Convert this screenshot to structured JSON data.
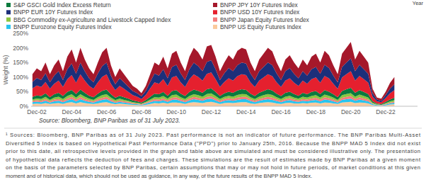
{
  "chart_data": {
    "type": "area",
    "stacked": true,
    "grid": false,
    "legend": "top",
    "y_label": "Weight (%)",
    "annotations": [
      "Year"
    ],
    "categories": [
      null,
      "Dec-02",
      null,
      null,
      null,
      null,
      null,
      null,
      null,
      "Dec-04",
      null,
      null,
      null,
      null,
      null,
      null,
      null,
      "Dec-06",
      null,
      null,
      null,
      null,
      null,
      null,
      null,
      "Dec-08",
      null,
      null,
      null,
      null,
      null,
      null,
      null,
      "Dec-10",
      null,
      null,
      null,
      null,
      null,
      null,
      null,
      "Dec-12",
      null,
      null,
      null,
      null,
      null,
      null,
      null,
      "Dec-14",
      null,
      null,
      null,
      null,
      null,
      null,
      null,
      "Dec-16",
      null,
      null,
      null,
      null,
      null,
      null,
      null,
      "Dec-18",
      null,
      null,
      null,
      null,
      null,
      null,
      null,
      "Dec-20",
      null,
      null,
      null,
      null,
      null,
      null,
      null,
      "Dec-22",
      null,
      null
    ],
    "ylim": [
      0,
      250
    ],
    "yticks": [
      {
        "value": 0,
        "label": "0%"
      },
      {
        "value": 50,
        "label": "50%"
      },
      {
        "value": 100,
        "label": "100%"
      },
      {
        "value": 150,
        "label": "150%"
      },
      {
        "value": 200,
        "label": "200%"
      },
      {
        "value": 250,
        "label": "250%"
      }
    ],
    "series": [
      {
        "name": "S&P GSCI Gold Index Excess Return",
        "color": "#0b7a3e",
        "values": [
          9,
          10,
          10,
          12,
          9,
          11,
          13,
          10,
          14,
          15,
          12,
          16,
          13,
          10,
          9,
          12,
          15,
          16,
          11,
          8,
          10,
          9,
          7,
          6,
          5,
          4,
          6,
          9,
          12,
          11,
          14,
          10,
          14,
          15,
          12,
          10,
          14,
          16,
          15,
          13,
          16,
          17,
          14,
          10,
          12,
          14,
          13,
          15,
          16,
          15,
          12,
          10,
          13,
          14,
          16,
          15,
          12,
          10,
          13,
          14,
          12,
          10,
          13,
          11,
          14,
          14,
          12,
          15,
          14,
          11,
          9,
          14,
          16,
          18,
          13,
          15,
          14,
          12,
          5,
          2,
          2,
          4,
          6,
          8
        ]
      },
      {
        "name": "BNPP JPY 10Y Futures Index",
        "color": "#a5182b",
        "values": [
          27,
          33,
          30,
          37,
          28,
          35,
          40,
          30,
          43,
          49,
          39,
          51,
          40,
          34,
          28,
          38,
          47,
          51,
          35,
          25,
          34,
          28,
          23,
          18,
          15,
          11,
          17,
          27,
          38,
          35,
          43,
          34,
          45,
          48,
          38,
          30,
          43,
          51,
          47,
          40,
          53,
          52,
          43,
          30,
          37,
          44,
          40,
          49,
          50,
          49,
          38,
          30,
          40,
          45,
          50,
          47,
          38,
          30,
          40,
          44,
          39,
          34,
          40,
          35,
          43,
          45,
          39,
          48,
          44,
          35,
          28,
          45,
          50,
          56,
          40,
          48,
          43,
          38,
          15,
          7,
          7,
          12,
          20,
          25
        ]
      },
      {
        "name": "BNPP EUR 10Y Futures Index",
        "color": "#1c2f7a",
        "values": [
          22,
          26,
          24,
          30,
          22,
          28,
          32,
          24,
          34,
          39,
          30,
          40,
          32,
          26,
          22,
          30,
          37,
          40,
          28,
          20,
          26,
          22,
          18,
          14,
          12,
          9,
          14,
          22,
          30,
          28,
          34,
          26,
          36,
          38,
          30,
          24,
          34,
          40,
          37,
          32,
          41,
          42,
          34,
          24,
          30,
          35,
          32,
          38,
          40,
          39,
          30,
          24,
          32,
          36,
          40,
          38,
          30,
          24,
          32,
          35,
          30,
          26,
          32,
          28,
          34,
          36,
          30,
          38,
          35,
          28,
          22,
          36,
          40,
          44,
          32,
          38,
          34,
          30,
          12,
          6,
          5,
          10,
          16,
          20
        ]
      },
      {
        "name": "BNPP USD 10Y Futures Index",
        "color": "#e5202e",
        "values": [
          29,
          34,
          31,
          39,
          29,
          36,
          42,
          31,
          44,
          51,
          39,
          52,
          42,
          34,
          29,
          39,
          48,
          52,
          36,
          26,
          34,
          29,
          23,
          18,
          16,
          12,
          18,
          29,
          39,
          36,
          44,
          34,
          47,
          49,
          39,
          31,
          44,
          52,
          48,
          42,
          53,
          55,
          44,
          31,
          39,
          46,
          42,
          49,
          52,
          51,
          39,
          31,
          42,
          47,
          52,
          49,
          39,
          31,
          42,
          46,
          39,
          34,
          42,
          36,
          44,
          47,
          39,
          49,
          46,
          36,
          29,
          47,
          52,
          57,
          42,
          49,
          44,
          39,
          16,
          8,
          7,
          13,
          21,
          26
        ]
      },
      {
        "name": "BBG Commodity ex-Agriculture and Livestock Capped Index",
        "color": "#8cc63f",
        "values": [
          5,
          6,
          6,
          7,
          5,
          7,
          8,
          6,
          8,
          9,
          7,
          9,
          8,
          6,
          5,
          7,
          9,
          9,
          7,
          5,
          6,
          5,
          4,
          3,
          3,
          2,
          3,
          5,
          7,
          7,
          8,
          6,
          9,
          9,
          7,
          6,
          8,
          9,
          9,
          8,
          10,
          10,
          8,
          6,
          7,
          8,
          8,
          9,
          10,
          9,
          7,
          6,
          8,
          9,
          10,
          9,
          7,
          6,
          8,
          8,
          7,
          6,
          8,
          7,
          8,
          9,
          7,
          9,
          8,
          7,
          5,
          9,
          10,
          10,
          8,
          9,
          8,
          7,
          3,
          2,
          1,
          3,
          4,
          5
        ]
      },
      {
        "name": "BNPP Japan Equity Futures Index",
        "color": "#f47c7c",
        "values": [
          4,
          5,
          5,
          6,
          4,
          6,
          6,
          5,
          7,
          8,
          6,
          8,
          6,
          5,
          4,
          6,
          7,
          8,
          6,
          4,
          5,
          4,
          4,
          3,
          2,
          2,
          3,
          4,
          6,
          6,
          7,
          5,
          7,
          8,
          6,
          5,
          7,
          8,
          7,
          6,
          8,
          8,
          7,
          5,
          6,
          7,
          6,
          8,
          8,
          8,
          6,
          5,
          6,
          7,
          8,
          8,
          6,
          5,
          6,
          7,
          6,
          5,
          6,
          6,
          7,
          7,
          6,
          8,
          7,
          6,
          4,
          7,
          8,
          9,
          6,
          8,
          7,
          6,
          2,
          1,
          1,
          2,
          3,
          4
        ]
      },
      {
        "name": "BNPP Eurozone Equity Futures Index",
        "color": "#27c4ef",
        "values": [
          6,
          7,
          6,
          8,
          5,
          7,
          8,
          6,
          8,
          10,
          7,
          10,
          8,
          6,
          5,
          8,
          9,
          10,
          7,
          5,
          6,
          5,
          5,
          3,
          3,
          2,
          4,
          6,
          7,
          7,
          8,
          6,
          9,
          10,
          7,
          6,
          8,
          10,
          9,
          8,
          10,
          11,
          8,
          6,
          8,
          9,
          8,
          9,
          10,
          10,
          8,
          6,
          8,
          9,
          10,
          9,
          8,
          6,
          8,
          9,
          7,
          6,
          8,
          7,
          8,
          9,
          7,
          10,
          9,
          7,
          5,
          9,
          10,
          11,
          8,
          10,
          8,
          7,
          3,
          2,
          1,
          3,
          4,
          5
        ]
      },
      {
        "name": "BNPP US Equity Futures Index",
        "color": "#fbc99c",
        "values": [
          8,
          9,
          8,
          11,
          8,
          10,
          11,
          8,
          12,
          14,
          10,
          14,
          11,
          9,
          8,
          10,
          13,
          14,
          10,
          7,
          9,
          8,
          6,
          5,
          4,
          3,
          5,
          8,
          11,
          10,
          12,
          9,
          13,
          13,
          11,
          8,
          12,
          14,
          13,
          11,
          14,
          15,
          12,
          8,
          11,
          12,
          11,
          13,
          14,
          14,
          10,
          8,
          11,
          13,
          14,
          13,
          10,
          8,
          11,
          12,
          10,
          9,
          11,
          10,
          12,
          13,
          10,
          13,
          12,
          10,
          8,
          13,
          14,
          15,
          11,
          13,
          12,
          10,
          4,
          2,
          2,
          3,
          6,
          7
        ]
      }
    ]
  },
  "source": "Source: Bloomberg, BNP Paribas as of 31 July 2023.",
  "footnote": [
    "¹ Sources: Bloomberg, BNP Paribas as of 31 July 2023. Past performance is not an indicator of future performance. The BNP Paribas Multi-Asset",
    "Diversified 5 Index is based on Hypothetical Past Performance Data (\"PPD\") prior to January 25th, 2016. Because the BNPP MAD 5 Index did not exist",
    "prior to this date, all retrospective levels provided in the graph and table above are simulated and must be considered illustrative only. The presentation",
    "of hypothetical data reflects the deduction of fees and charges. These simulations are the result of estimates made by BNP Paribas at a given moment",
    "on the basis of the parameters selected by BNP Paribas, certain assumptions that may or may not hold in future periods, of market conditions at this given",
    "moment and of historical data, which should not be used as guidance, in any way, of the future results of the BNPP MAD 5 Index."
  ]
}
